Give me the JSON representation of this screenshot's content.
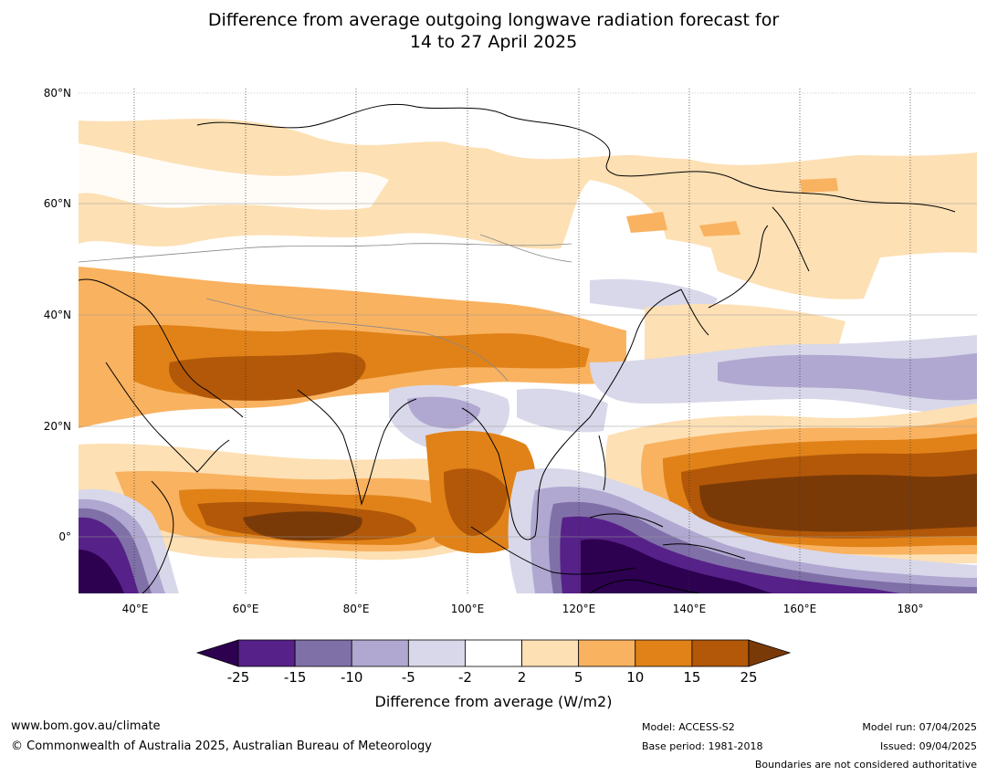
{
  "title": {
    "line1": "Difference from average outgoing longwave radiation forecast for",
    "line2": "14 to 27 April 2025"
  },
  "map": {
    "lat_labels": [
      "80°N",
      "60°N",
      "40°N",
      "20°N",
      "0°"
    ],
    "lon_labels": [
      "40°E",
      "60°E",
      "80°E",
      "100°E",
      "120°E",
      "140°E",
      "160°E",
      "180°"
    ]
  },
  "colorbar": {
    "ticks": [
      "-25",
      "-15",
      "-10",
      "-5",
      "-2",
      "2",
      "5",
      "10",
      "15",
      "25"
    ],
    "colors": [
      "#2d0050",
      "#562188",
      "#8070a8",
      "#b0a8d0",
      "#d8d8ea",
      "#ffffff",
      "#fde0b4",
      "#f9b260",
      "#e08218",
      "#b25808",
      "#7a3a08"
    ],
    "label": "Difference from average (W/m2)"
  },
  "footer": {
    "website": "www.bom.gov.au/climate",
    "copyright": "© Commonwealth of Australia 2025, Australian Bureau of Meteorology",
    "model": "Model: ACCESS-S2",
    "base_period": "Base period: 1981-2018",
    "model_run": "Model run: 07/04/2025",
    "issued": "Issued: 09/04/2025",
    "disclaimer": "Boundaries are not considered authoritative"
  }
}
